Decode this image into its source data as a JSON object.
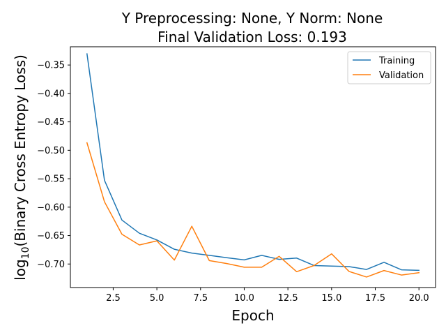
{
  "chart_data": {
    "type": "line",
    "title_line1": "Y Preprocessing: None, Y Norm: None",
    "title_line2": "Final Validation Loss: 0.193",
    "xlabel": "Epoch",
    "ylabel_prefix": "log",
    "ylabel_sub": "10",
    "ylabel_suffix": "(Binary Cross Entropy Loss)",
    "xlim": [
      0.05,
      20.95
    ],
    "ylim": [
      -0.7414,
      -0.3179
    ],
    "xticks": [
      2.5,
      5.0,
      7.5,
      10.0,
      12.5,
      15.0,
      17.5,
      20.0
    ],
    "xtick_labels": [
      "2.5",
      "5.0",
      "7.5",
      "10.0",
      "12.5",
      "15.0",
      "17.5",
      "20.0"
    ],
    "yticks": [
      -0.35,
      -0.4,
      -0.45,
      -0.5,
      -0.55,
      -0.6,
      -0.65,
      -0.7
    ],
    "ytick_labels": [
      "−0.35",
      "−0.40",
      "−0.45",
      "−0.50",
      "−0.55",
      "−0.60",
      "−0.65",
      "−0.70"
    ],
    "grid": false,
    "legend_position": "top-right",
    "x": [
      1,
      2,
      3,
      4,
      5,
      6,
      7,
      8,
      9,
      10,
      11,
      12,
      13,
      14,
      15,
      16,
      17,
      18,
      19,
      20
    ],
    "series": [
      {
        "name": "Training",
        "color": "#1f77b4",
        "values": [
          -0.3303,
          -0.5527,
          -0.6227,
          -0.6459,
          -0.6577,
          -0.6741,
          -0.6808,
          -0.6848,
          -0.6889,
          -0.6928,
          -0.6848,
          -0.6918,
          -0.6896,
          -0.7027,
          -0.7037,
          -0.7046,
          -0.7096,
          -0.697,
          -0.7102,
          -0.7112
        ]
      },
      {
        "name": "Validation",
        "color": "#ff7f0e",
        "values": [
          -0.4868,
          -0.5905,
          -0.6476,
          -0.6665,
          -0.6593,
          -0.6931,
          -0.6336,
          -0.694,
          -0.6992,
          -0.7056,
          -0.7056,
          -0.6865,
          -0.7135,
          -0.7026,
          -0.6821,
          -0.7131,
          -0.7229,
          -0.7115,
          -0.7194,
          -0.7153
        ]
      }
    ]
  }
}
